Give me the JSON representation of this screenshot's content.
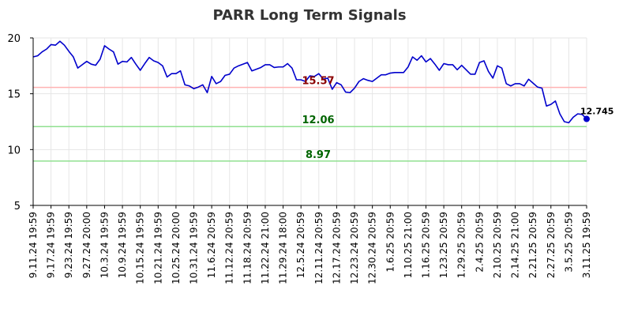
{
  "chart_data": {
    "type": "line",
    "title": "PARR Long Term Signals",
    "ylim": [
      5,
      20
    ],
    "yticks": [
      5,
      10,
      15,
      20
    ],
    "grid": true,
    "xtick_labels": [
      "9.11.24 19:59",
      "9.17.24 19:59",
      "9.23.24 19:59",
      "9.27.24 20:00",
      "10.3.24 19:59",
      "10.9.24 19:59",
      "10.15.24 19:59",
      "10.21.24 19:59",
      "10.25.24 20:00",
      "10.31.24 19:59",
      "11.6.24 20:59",
      "11.12.24 20:59",
      "11.18.24 20:59",
      "11.22.24 21:00",
      "11.29.24 18:00",
      "12.5.24 20:59",
      "12.11.24 20:59",
      "12.17.24 20:59",
      "12.23.24 20:59",
      "12.30.24 20:59",
      "1.6.25 20:59",
      "1.10.25 21:00",
      "1.16.25 20:59",
      "1.23.25 20:59",
      "1.29.25 20:59",
      "2.4.25 20:59",
      "2.10.25 20:59",
      "2.14.25 21:00",
      "2.21.25 20:59",
      "2.27.25 20:59",
      "3.5.25 20:59",
      "3.11.25 19:59"
    ],
    "series": [
      {
        "color": "#0000cc",
        "values": [
          18.3,
          18.4,
          18.75,
          19.0,
          19.4,
          19.35,
          19.7,
          19.35,
          18.8,
          18.3,
          17.3,
          17.6,
          17.9,
          17.65,
          17.55,
          18.1,
          19.3,
          19.0,
          18.75,
          17.65,
          17.9,
          17.85,
          18.25,
          17.65,
          17.1,
          17.7,
          18.25,
          17.95,
          17.8,
          17.5,
          16.5,
          16.8,
          16.8,
          17.05,
          15.8,
          15.7,
          15.45,
          15.6,
          15.8,
          15.1,
          16.55,
          15.9,
          16.1,
          16.65,
          16.75,
          17.3,
          17.5,
          17.65,
          17.8,
          17.05,
          17.2,
          17.35,
          17.6,
          17.6,
          17.35,
          17.4,
          17.4,
          17.7,
          17.3,
          16.25,
          16.25,
          16.1,
          16.6,
          16.55,
          16.8,
          16.3,
          16.4,
          15.4,
          16.0,
          15.8,
          15.15,
          15.1,
          15.5,
          16.1,
          16.35,
          16.2,
          16.1,
          16.4,
          16.7,
          16.7,
          16.85,
          16.9,
          16.9,
          16.9,
          17.4,
          18.3,
          18.0,
          18.4,
          17.85,
          18.15,
          17.65,
          17.1,
          17.7,
          17.6,
          17.6,
          17.15,
          17.55,
          17.15,
          16.75,
          16.75,
          17.8,
          17.95,
          17.0,
          16.4,
          17.5,
          17.3,
          15.9,
          15.7,
          15.9,
          15.9,
          15.7,
          16.3,
          15.95,
          15.6,
          15.5,
          13.9,
          14.05,
          14.35,
          13.2,
          12.5,
          12.4,
          12.9,
          13.2,
          13.15,
          12.745
        ]
      }
    ],
    "levels": [
      {
        "value": 15.57,
        "label": "15.57",
        "line_color": "#ffb3b3",
        "text_color": "#8b0000"
      },
      {
        "value": 12.06,
        "label": "12.06",
        "line_color": "#90e090",
        "text_color": "#006400"
      },
      {
        "value": 8.97,
        "label": "8.97",
        "line_color": "#90e090",
        "text_color": "#006400"
      }
    ],
    "last_value": 12.745,
    "last_label": "12.745"
  }
}
